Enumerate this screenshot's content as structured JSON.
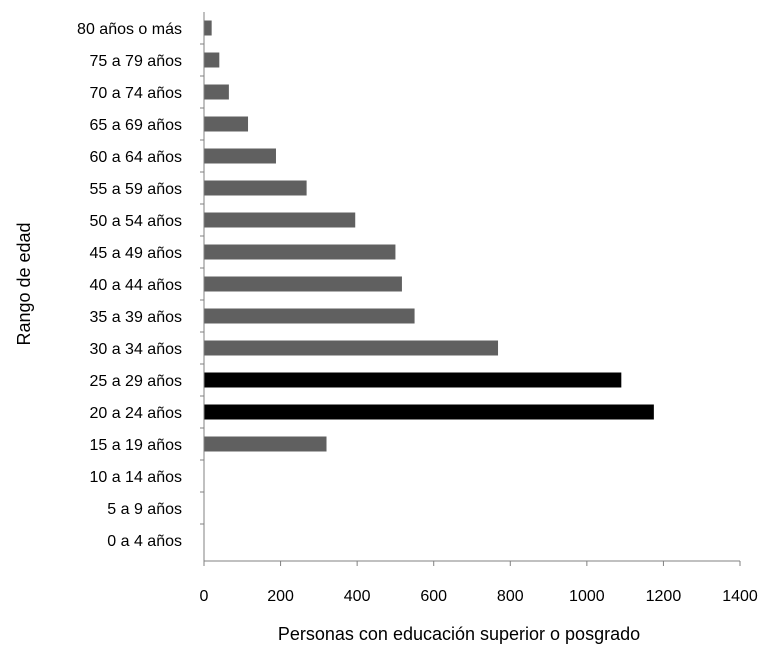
{
  "chart_data": {
    "type": "bar",
    "orientation": "horizontal",
    "title": "",
    "xlabel": "Personas con educación superior o posgrado",
    "ylabel": "Rango de edad",
    "xlim": [
      0,
      1400
    ],
    "xticks": [
      "0",
      "200",
      "400",
      "600",
      "800",
      "1000",
      "1200",
      "1400"
    ],
    "grid": false,
    "categories": [
      "80 años o más",
      "75 a 79 años",
      "70 a 74 años",
      "65 a 69 años",
      "60 a 64 años",
      "55 a 59 años",
      "50 a 54 años",
      "45 a 49 años",
      "40 a 44 años",
      "35 a 39 años",
      "30 a 34 años",
      "25 a 29 años",
      "20 a 24 años",
      "15 a 19 años",
      "10 a 14 años",
      "5 a 9 años",
      "0 a 4 años"
    ],
    "values": [
      20,
      40,
      65,
      115,
      188,
      268,
      395,
      500,
      517,
      550,
      768,
      1090,
      1175,
      320,
      0,
      0,
      0
    ],
    "highlighted": [
      "25 a 29 años",
      "20 a 24 años"
    ],
    "colors": {
      "default": "#606060",
      "highlight": "#000000",
      "axis": "#808080"
    }
  }
}
